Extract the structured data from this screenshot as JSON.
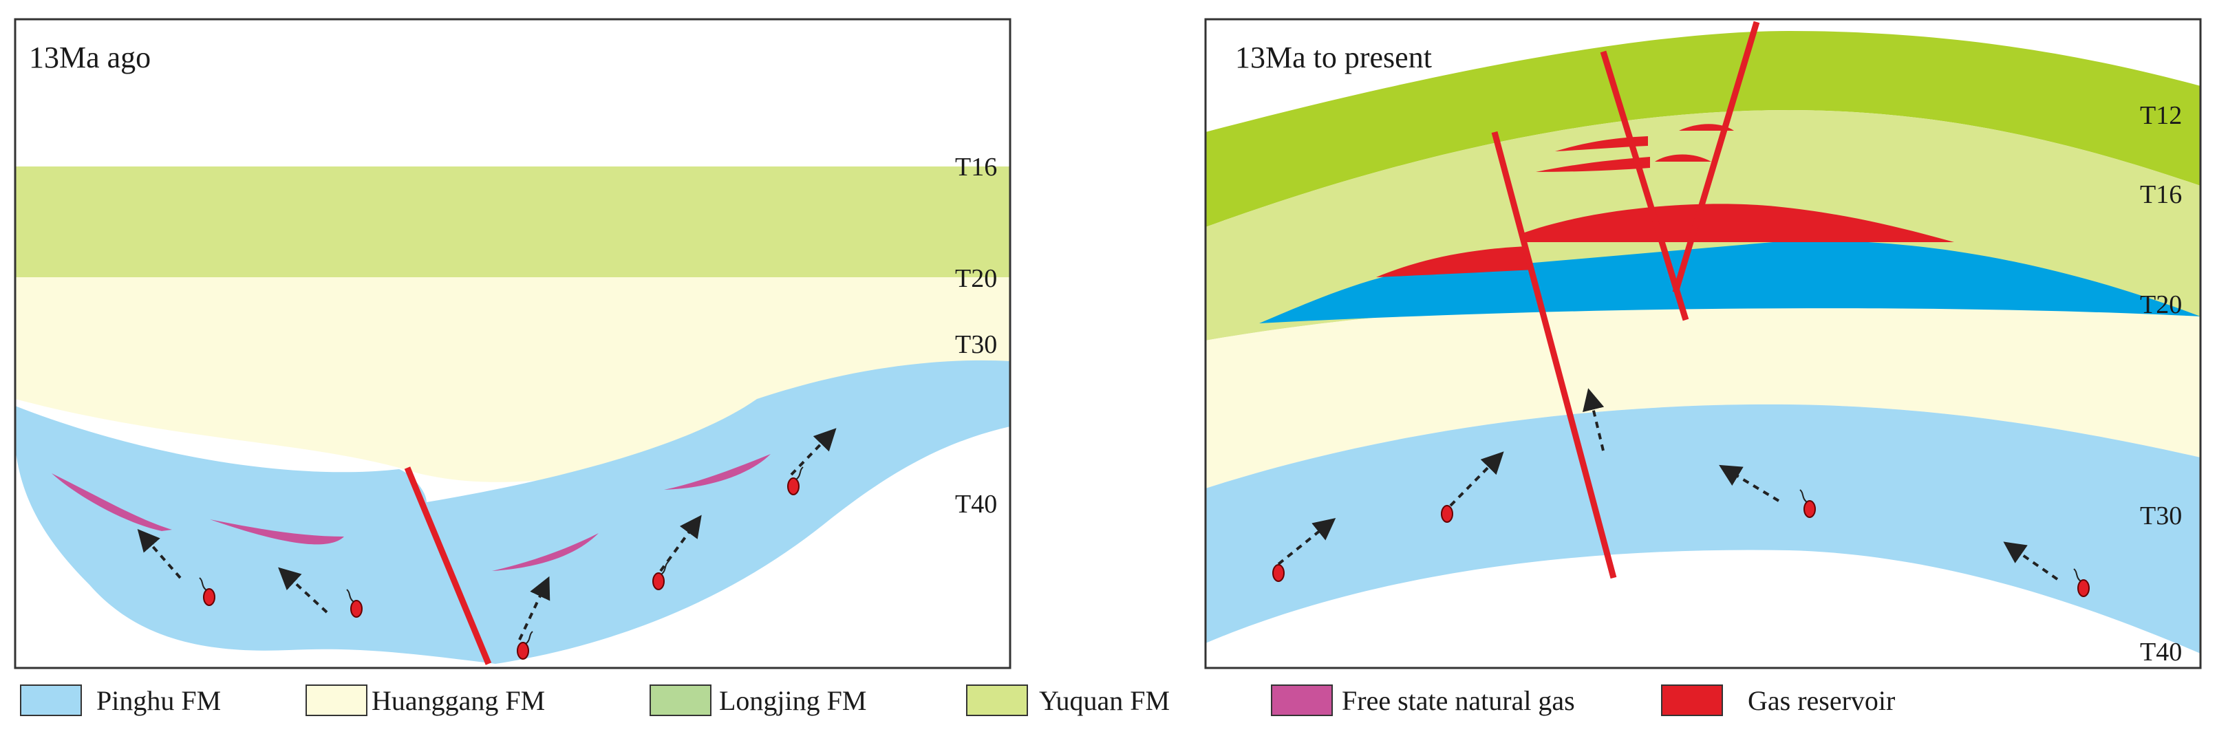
{
  "panels": {
    "left": {
      "title": "13Ma  ago",
      "horizons": {
        "T16": "T16",
        "T20": "T20",
        "T30": "T30",
        "T40": "T40"
      }
    },
    "right": {
      "title": "13Ma to present",
      "horizons": {
        "T12": "T12",
        "T16": "T16",
        "T20": "T20",
        "T30": "T30",
        "T40": "T40"
      }
    }
  },
  "legend": [
    {
      "label": "Pinghu FM",
      "color": "#a3d9f4"
    },
    {
      "label": "Huanggang FM",
      "color": "#fdfbdc"
    },
    {
      "label": "Longjing FM",
      "color": "#b5d996"
    },
    {
      "label": "Yuquan FM",
      "color": "#d6e68a"
    },
    {
      "label": "Free state natural gas",
      "color": "#c9529a"
    },
    {
      "label": "Gas reservoir",
      "color": "#e21e26"
    }
  ],
  "colors": {
    "pinghu": "#a3d9f4",
    "huanggang": "#fdfbdc",
    "longjing": "#add12a",
    "yuquan": "#d6e68a",
    "longjing_upper": "#d9e78e",
    "free_gas": "#c9529a",
    "gas_reservoir": "#e21e26",
    "fault": "#e21e26",
    "blue_reservoir": "#00a2e2",
    "frame": "#333333"
  }
}
